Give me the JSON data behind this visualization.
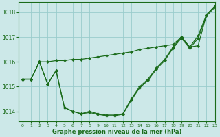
{
  "bg_color": "#cce8e8",
  "grid_color": "#99cccc",
  "line_color": "#1a6b1a",
  "xlabel": "Graphe pression niveau de la mer (hPa)",
  "ylim": [
    1013.6,
    1018.4
  ],
  "xlim": [
    -0.5,
    23
  ],
  "yticks": [
    1014,
    1015,
    1016,
    1017,
    1018
  ],
  "xticks": [
    0,
    1,
    2,
    3,
    4,
    5,
    6,
    7,
    8,
    9,
    10,
    11,
    12,
    13,
    14,
    15,
    16,
    17,
    18,
    19,
    20,
    21,
    22,
    23
  ],
  "line1": [
    1015.3,
    1015.3,
    1016.0,
    1016.0,
    1016.05,
    1016.05,
    1016.1,
    1016.1,
    1016.15,
    1016.2,
    1016.25,
    1016.3,
    1016.35,
    1016.4,
    1016.5,
    1016.55,
    1016.6,
    1016.65,
    1016.7,
    1017.0,
    1016.6,
    1016.65,
    1017.9,
    1018.25
  ],
  "line2": [
    1015.3,
    1015.3,
    1016.0,
    1015.1,
    1015.65,
    1014.15,
    1014.0,
    1013.9,
    1014.0,
    1013.9,
    1013.85,
    1013.85,
    1013.9,
    1014.5,
    1015.0,
    1015.3,
    1015.75,
    1016.1,
    1016.6,
    1017.0,
    1016.6,
    1017.05,
    1017.9,
    1018.25
  ],
  "line3": [
    1015.3,
    1015.3,
    1016.0,
    1015.1,
    1015.65,
    1014.15,
    1014.0,
    1013.9,
    1013.95,
    1013.88,
    1013.82,
    1013.82,
    1013.88,
    1014.45,
    1014.95,
    1015.25,
    1015.7,
    1016.05,
    1016.55,
    1016.95,
    1016.55,
    1016.95,
    1017.85,
    1018.2
  ]
}
